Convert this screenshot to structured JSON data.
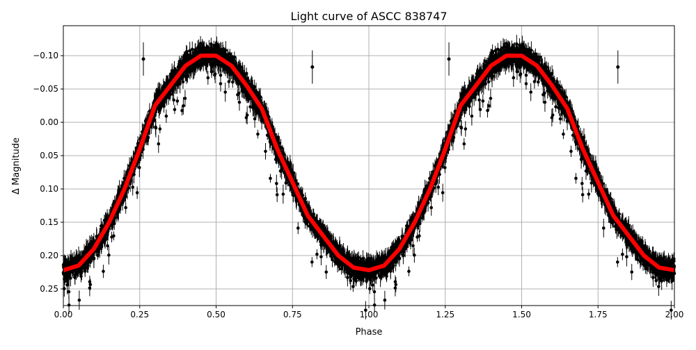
{
  "chart_data": {
    "type": "scatter",
    "title": "Light curve of ASCC 838747",
    "xlabel": "Phase",
    "ylabel": "Δ Magnitude",
    "xlim": [
      0,
      2
    ],
    "ylim": [
      0.275,
      -0.145
    ],
    "y_inverted": true,
    "grid": true,
    "xticks": [
      0,
      0.25,
      0.5,
      0.75,
      1.0,
      1.25,
      1.5,
      1.75,
      2.0
    ],
    "xtick_labels": [
      "0.00",
      "0.25",
      "0.50",
      "0.75",
      "1.00",
      "1.25",
      "1.50",
      "1.75",
      "2.00"
    ],
    "yticks": [
      -0.1,
      -0.05,
      0.0,
      0.05,
      0.1,
      0.15,
      0.2,
      0.25
    ],
    "ytick_labels": [
      "−0.10",
      "−0.05",
      "0.00",
      "0.05",
      "0.10",
      "0.15",
      "0.20",
      "0.25"
    ],
    "binned_curve": {
      "color": "#ff0000",
      "phase": [
        0,
        0.05,
        0.1,
        0.15,
        0.2,
        0.25,
        0.3,
        0.35,
        0.4,
        0.45,
        0.5,
        0.55,
        0.6,
        0.65,
        0.7,
        0.75,
        0.8,
        0.85,
        0.9,
        0.95,
        1.0,
        1.05,
        1.1,
        1.15,
        1.2,
        1.25,
        1.3,
        1.35,
        1.4,
        1.45,
        1.5,
        1.55,
        1.6,
        1.65,
        1.7,
        1.75,
        1.8,
        1.85,
        1.9,
        1.95,
        2.0
      ],
      "magnitude": [
        0.222,
        0.215,
        0.19,
        0.15,
        0.1,
        0.04,
        -0.025,
        -0.055,
        -0.085,
        -0.1,
        -0.1,
        -0.085,
        -0.055,
        -0.02,
        0.04,
        0.09,
        0.14,
        0.17,
        0.2,
        0.218,
        0.222,
        0.215,
        0.19,
        0.15,
        0.1,
        0.04,
        -0.025,
        -0.055,
        -0.085,
        -0.1,
        -0.1,
        -0.085,
        -0.055,
        -0.02,
        0.04,
        0.09,
        0.14,
        0.17,
        0.2,
        0.218,
        0.222
      ]
    },
    "points_color": "#000000",
    "outliers": [
      {
        "phase": 0.262,
        "magnitude": -0.095,
        "err": 0.025
      },
      {
        "phase": 0.815,
        "magnitude": -0.083,
        "err": 0.025
      },
      {
        "phase": 1.262,
        "magnitude": -0.095,
        "err": 0.025
      },
      {
        "phase": 1.815,
        "magnitude": -0.083,
        "err": 0.025
      }
    ]
  }
}
